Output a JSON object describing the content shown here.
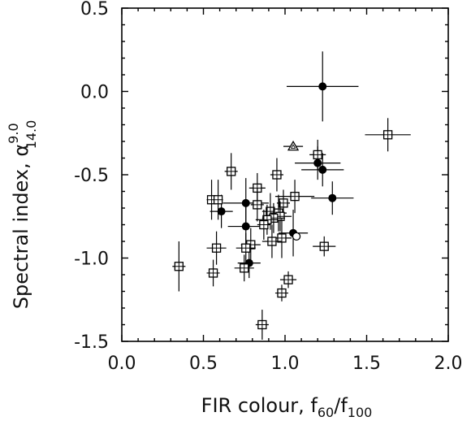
{
  "chart_data": {
    "type": "scatter",
    "title": "",
    "xlabel": "FIR colour, f60/f100",
    "xlabel_parts": {
      "main": "FIR colour, f",
      "sub1": "60",
      "slash": "/f",
      "sub2": "100"
    },
    "ylabel": "Spectral index, α 9.0 14.0",
    "ylabel_parts": {
      "main": "Spectral index, α",
      "sup": "9.0",
      "sub": "14.0"
    },
    "xlim": [
      0.0,
      2.0
    ],
    "ylim": [
      -1.5,
      0.5
    ],
    "xticks": [
      "0.0",
      "0.5",
      "1.0",
      "1.5",
      "2.0"
    ],
    "yticks": [
      "0.5",
      "0.0",
      "-0.5",
      "-1.0",
      "-1.5"
    ],
    "grid": false,
    "colors": {
      "marker": "#000000",
      "axis": "#000000"
    },
    "series": [
      {
        "marker": "filled-circle",
        "points": [
          {
            "x": 1.23,
            "y": 0.03,
            "xerr": 0.22,
            "yerr": 0.21
          },
          {
            "x": 1.2,
            "y": -0.43,
            "xerr": 0.14,
            "yerr": 0.1
          },
          {
            "x": 1.23,
            "y": -0.47,
            "xerr": 0.13,
            "yerr": 0.1
          },
          {
            "x": 1.29,
            "y": -0.64,
            "xerr": 0.13,
            "yerr": 0.1
          },
          {
            "x": 0.61,
            "y": -0.72,
            "xerr": 0.07,
            "yerr": 0.1
          },
          {
            "x": 0.76,
            "y": -0.67,
            "xerr": 0.14,
            "yerr": 0.15
          },
          {
            "x": 0.76,
            "y": -0.81,
            "xerr": 0.11,
            "yerr": 0.14
          },
          {
            "x": 1.05,
            "y": -0.85,
            "xerr": 0.09,
            "yerr": 0.14
          },
          {
            "x": 0.78,
            "y": -1.03,
            "xerr": 0.07,
            "yerr": 0.09
          }
        ]
      },
      {
        "marker": "open-circle",
        "points": [
          {
            "x": 1.07,
            "y": -0.87,
            "xerr": 0.0,
            "yerr": 0.0
          }
        ]
      },
      {
        "marker": "open-triangle",
        "points": [
          {
            "x": 1.05,
            "y": -0.33,
            "xerr": 0.06,
            "yerr": 0.0
          }
        ]
      },
      {
        "marker": "open-square",
        "points": [
          {
            "x": 1.63,
            "y": -0.26,
            "xerr": 0.14,
            "yerr": 0.1
          },
          {
            "x": 1.2,
            "y": -0.38,
            "xerr": 0.05,
            "yerr": 0.09
          },
          {
            "x": 0.67,
            "y": -0.48,
            "xerr": 0.04,
            "yerr": 0.11
          },
          {
            "x": 0.95,
            "y": -0.5,
            "xerr": 0.04,
            "yerr": 0.1
          },
          {
            "x": 0.83,
            "y": -0.58,
            "xerr": 0.05,
            "yerr": 0.09
          },
          {
            "x": 1.06,
            "y": -0.63,
            "xerr": 0.12,
            "yerr": 0.1
          },
          {
            "x": 0.55,
            "y": -0.65,
            "xerr": 0.03,
            "yerr": 0.12
          },
          {
            "x": 0.59,
            "y": -0.65,
            "xerr": 0.03,
            "yerr": 0.12
          },
          {
            "x": 0.99,
            "y": -0.67,
            "xerr": 0.04,
            "yerr": 0.08
          },
          {
            "x": 0.83,
            "y": -0.68,
            "xerr": 0.04,
            "yerr": 0.1
          },
          {
            "x": 0.91,
            "y": -0.72,
            "xerr": 0.05,
            "yerr": 0.11
          },
          {
            "x": 0.96,
            "y": -0.73,
            "xerr": 0.05,
            "yerr": 0.11
          },
          {
            "x": 0.97,
            "y": -0.75,
            "xerr": 0.07,
            "yerr": 0.09
          },
          {
            "x": 0.93,
            "y": -0.76,
            "xerr": 0.07,
            "yerr": 0.09
          },
          {
            "x": 0.89,
            "y": -0.77,
            "xerr": 0.07,
            "yerr": 0.09
          },
          {
            "x": 0.87,
            "y": -0.8,
            "xerr": 0.04,
            "yerr": 0.09
          },
          {
            "x": 0.98,
            "y": -0.88,
            "xerr": 0.06,
            "yerr": 0.12
          },
          {
            "x": 0.92,
            "y": -0.9,
            "xerr": 0.06,
            "yerr": 0.1
          },
          {
            "x": 0.79,
            "y": -0.92,
            "xerr": 0.06,
            "yerr": 0.1
          },
          {
            "x": 0.76,
            "y": -0.94,
            "xerr": 0.06,
            "yerr": 0.09
          },
          {
            "x": 0.58,
            "y": -0.94,
            "xerr": 0.06,
            "yerr": 0.1
          },
          {
            "x": 1.24,
            "y": -0.93,
            "xerr": 0.07,
            "yerr": 0.06
          },
          {
            "x": 0.35,
            "y": -1.05,
            "xerr": 0.04,
            "yerr": 0.15
          },
          {
            "x": 0.75,
            "y": -1.06,
            "xerr": 0.06,
            "yerr": 0.08
          },
          {
            "x": 0.56,
            "y": -1.09,
            "xerr": 0.04,
            "yerr": 0.08
          },
          {
            "x": 1.02,
            "y": -1.13,
            "xerr": 0.05,
            "yerr": 0.05
          },
          {
            "x": 0.98,
            "y": -1.21,
            "xerr": 0.04,
            "yerr": 0.05
          },
          {
            "x": 0.86,
            "y": -1.4,
            "xerr": 0.04,
            "yerr": 0.09
          }
        ]
      }
    ]
  }
}
